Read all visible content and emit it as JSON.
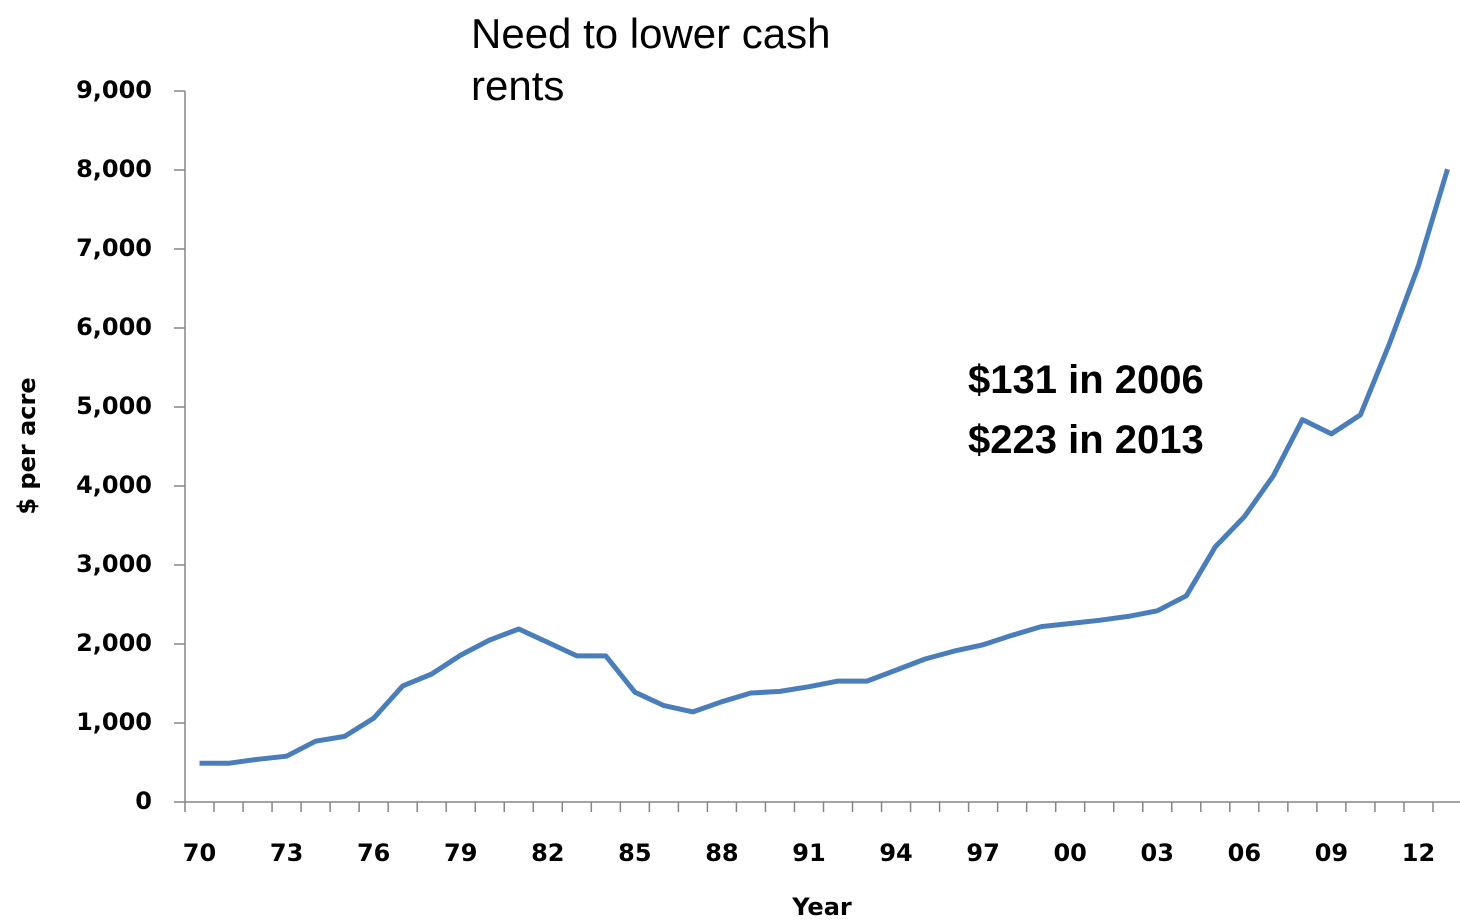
{
  "chart_data": {
    "type": "line",
    "title": "Need to lower cash rents",
    "annotations": [
      "$131 in 2006",
      "$223 in 2013"
    ],
    "x_label": "Year",
    "y_label": "$ per acre",
    "categories": [
      "70",
      null,
      null,
      "73",
      null,
      null,
      "76",
      null,
      null,
      "79",
      null,
      null,
      "82",
      null,
      null,
      "85",
      null,
      null,
      "88",
      null,
      null,
      "91",
      null,
      null,
      "94",
      null,
      null,
      "97",
      null,
      null,
      "00",
      null,
      null,
      "03",
      null,
      null,
      "06",
      null,
      null,
      "09",
      null,
      null,
      "12",
      null
    ],
    "values": [
      490,
      490,
      540,
      580,
      770,
      830,
      1060,
      1470,
      1620,
      1860,
      2050,
      2190,
      2020,
      1850,
      1850,
      1390,
      1220,
      1140,
      1270,
      1380,
      1400,
      1460,
      1530,
      1530,
      1670,
      1810,
      1910,
      1990,
      2110,
      2220,
      2260,
      2300,
      2350,
      2420,
      2610,
      3230,
      3610,
      4130,
      4840,
      4660,
      4900,
      5800,
      6790,
      8010
    ],
    "color": "#4a7ebb",
    "ylim": [
      0,
      9000
    ],
    "yticks": [
      0,
      {
        "value": 1000,
        "label": "1,000"
      },
      {
        "value": 2000,
        "label": "2,000"
      },
      {
        "value": 3000,
        "label": "3,000"
      },
      {
        "value": 4000,
        "label": "4,000"
      },
      {
        "value": 5000,
        "label": "5,000"
      },
      {
        "value": 6000,
        "label": "6,000"
      },
      {
        "value": 7000,
        "label": "7,000"
      },
      {
        "value": 8000,
        "label": "8,000"
      },
      {
        "value": 9000,
        "label": "9,000"
      }
    ],
    "grid": false
  }
}
